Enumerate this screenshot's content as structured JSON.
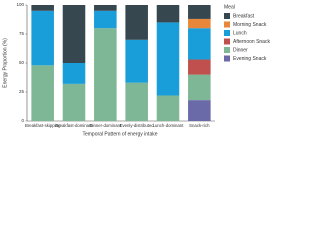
{
  "chart_data": {
    "type": "stacked-bar",
    "x_label": "Temporal Pattern of energy intake",
    "y_label": "Energy Proportion (%)",
    "legend_title": "Meal",
    "legend_position": "right",
    "categories": [
      "Breakfast-skipping",
      "Breakfast-dominant",
      "Dinner-dominant",
      "Evenly-distributed",
      "Lunch-dominant",
      "Snack-rich"
    ],
    "series": [
      {
        "name": "Breakfast",
        "color": "#36474f",
        "values": [
          5,
          50,
          5,
          30,
          15,
          12
        ]
      },
      {
        "name": "Morning Snack",
        "color": "#e8873a",
        "values": [
          0,
          0,
          0,
          0,
          0,
          8
        ]
      },
      {
        "name": "Lunch",
        "color": "#1a9ed9",
        "values": [
          47,
          18,
          15,
          37,
          63,
          27
        ]
      },
      {
        "name": "Afternoon Snack",
        "color": "#c0504d",
        "values": [
          0,
          0,
          0,
          0,
          0,
          13
        ]
      },
      {
        "name": "Dinner",
        "color": "#7db795",
        "values": [
          48,
          32,
          80,
          33,
          22,
          22
        ]
      },
      {
        "name": "Evening Snack",
        "color": "#6a6aa8",
        "values": [
          0,
          0,
          0,
          0,
          0,
          18
        ]
      }
    ],
    "ylim": [
      0,
      100
    ],
    "yticks": [
      0,
      25,
      50,
      75,
      100
    ],
    "grid": false
  }
}
